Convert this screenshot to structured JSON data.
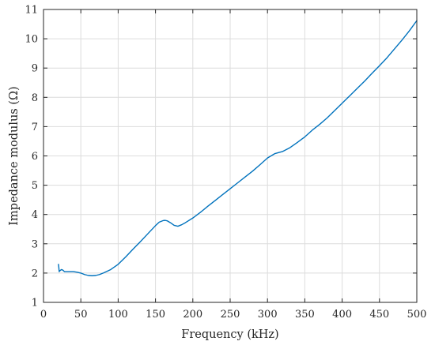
{
  "chart_data": {
    "type": "line",
    "title": "",
    "xlabel": "Frequency (kHz)",
    "ylabel": "Impedance modulus (Ω)",
    "xlim": [
      0,
      500
    ],
    "ylim": [
      1,
      11
    ],
    "xticks": [
      0,
      50,
      100,
      150,
      200,
      250,
      300,
      350,
      400,
      450,
      500
    ],
    "yticks": [
      1,
      2,
      3,
      4,
      5,
      6,
      7,
      8,
      9,
      10,
      11
    ],
    "grid": true,
    "legend": "none",
    "series": [
      {
        "color": "#0072bd",
        "x": [
          20,
          20.5,
          21,
          22,
          24,
          26,
          28,
          30,
          35,
          40,
          45,
          50,
          55,
          60,
          65,
          70,
          75,
          80,
          90,
          100,
          110,
          120,
          130,
          140,
          150,
          155,
          160,
          163,
          166,
          170,
          175,
          180,
          185,
          190,
          200,
          210,
          220,
          230,
          240,
          250,
          260,
          270,
          280,
          290,
          300,
          310,
          320,
          330,
          340,
          350,
          360,
          370,
          380,
          390,
          400,
          410,
          420,
          430,
          440,
          450,
          460,
          470,
          480,
          490,
          500
        ],
        "y": [
          2.3,
          2.2,
          2.05,
          2.08,
          2.12,
          2.1,
          2.05,
          2.05,
          2.05,
          2.05,
          2.03,
          2.0,
          1.95,
          1.92,
          1.91,
          1.92,
          1.95,
          2.0,
          2.12,
          2.3,
          2.55,
          2.82,
          3.08,
          3.35,
          3.62,
          3.74,
          3.79,
          3.8,
          3.78,
          3.72,
          3.63,
          3.6,
          3.65,
          3.72,
          3.88,
          4.07,
          4.28,
          4.48,
          4.68,
          4.88,
          5.08,
          5.28,
          5.48,
          5.7,
          5.93,
          6.08,
          6.15,
          6.28,
          6.46,
          6.65,
          6.88,
          7.08,
          7.3,
          7.55,
          7.8,
          8.05,
          8.3,
          8.55,
          8.82,
          9.08,
          9.35,
          9.65,
          9.95,
          10.27,
          10.62
        ]
      }
    ]
  }
}
